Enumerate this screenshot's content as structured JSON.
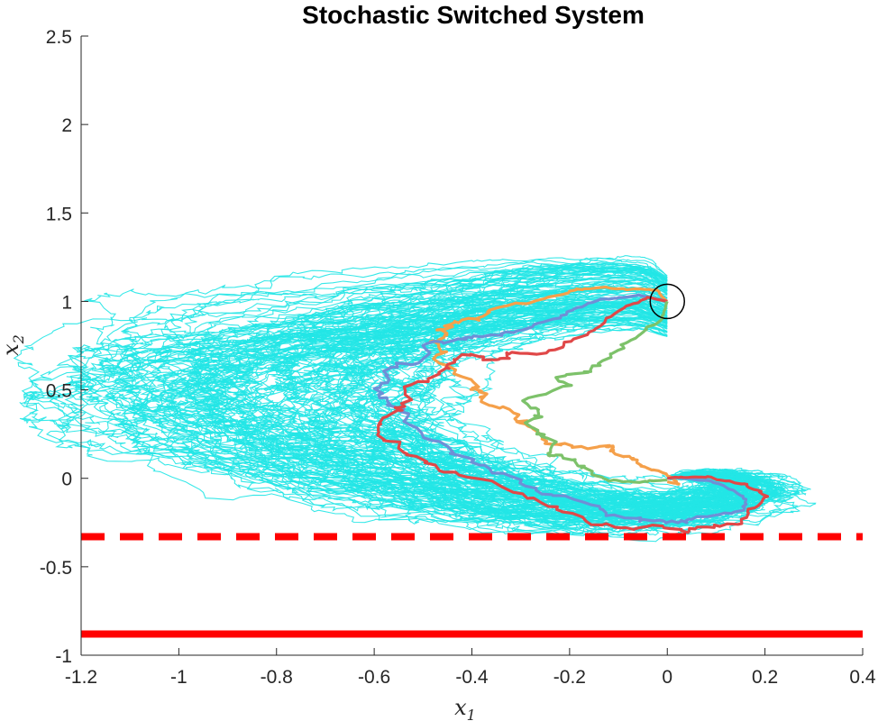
{
  "chart_data": {
    "type": "line",
    "title": "Stochastic Switched System",
    "xlabel": "x",
    "xlabel_sub": "1",
    "ylabel": "x",
    "ylabel_sub": "2",
    "xlim": [
      -1.2,
      0.4
    ],
    "ylim": [
      -1,
      2.5
    ],
    "xticks": [
      -1.2,
      -1,
      -0.8,
      -0.6,
      -0.4,
      -0.2,
      0,
      0.2,
      0.4
    ],
    "yticks": [
      -1,
      -0.5,
      0,
      0.5,
      1,
      1.5,
      2,
      2.5
    ],
    "xtick_labels": [
      "-1.2",
      "-1",
      "-0.8",
      "-0.6",
      "-0.4",
      "-0.2",
      "0",
      "0.2",
      "0.4"
    ],
    "ytick_labels": [
      "-1",
      "-0.5",
      "0",
      "0.5",
      "1",
      "1.5",
      "2",
      "2.5"
    ],
    "grid": false,
    "legend": "none",
    "initial_state": {
      "x": 0,
      "y": 1,
      "marker": "circle",
      "color": "#000000"
    },
    "constraints": [
      {
        "y": -0.33,
        "style": "dashed",
        "color": "#ff0000",
        "x_from": -1.2,
        "x_to": 0.4
      },
      {
        "y": -0.88,
        "style": "solid",
        "color": "#ff0000",
        "x_from": -1.2,
        "x_to": 0.4
      }
    ],
    "sample_paths": {
      "color": "#22e6e6",
      "count": 120,
      "anchor": [
        [
          0.0,
          1.0
        ],
        [
          -0.05,
          1.07
        ],
        [
          -0.15,
          1.07
        ],
        [
          -0.3,
          1.04
        ],
        [
          -0.45,
          0.98
        ],
        [
          -0.6,
          0.9
        ],
        [
          -0.75,
          0.82
        ],
        [
          -0.86,
          0.72
        ],
        [
          -0.9,
          0.6
        ],
        [
          -0.88,
          0.45
        ],
        [
          -0.82,
          0.3
        ],
        [
          -0.7,
          0.15
        ],
        [
          -0.55,
          0.02
        ],
        [
          -0.4,
          -0.08
        ],
        [
          -0.22,
          -0.15
        ],
        [
          -0.05,
          -0.18
        ],
        [
          0.1,
          -0.15
        ],
        [
          0.18,
          -0.08
        ],
        [
          0.15,
          0.0
        ],
        [
          0.05,
          0.02
        ],
        [
          0.0,
          0.0
        ]
      ]
    },
    "series": [
      {
        "color": "#f5a04a",
        "points": [
          [
            0.0,
            1.0
          ],
          [
            -0.03,
            1.06
          ],
          [
            -0.1,
            1.06
          ],
          [
            -0.2,
            1.08
          ],
          [
            -0.28,
            1.05
          ],
          [
            -0.36,
            0.98
          ],
          [
            -0.42,
            0.92
          ],
          [
            -0.47,
            0.86
          ],
          [
            -0.5,
            0.8
          ],
          [
            -0.49,
            0.68
          ],
          [
            -0.44,
            0.58
          ],
          [
            -0.4,
            0.5
          ],
          [
            -0.34,
            0.4
          ],
          [
            -0.26,
            0.3
          ],
          [
            -0.18,
            0.22
          ],
          [
            -0.1,
            0.18
          ],
          [
            -0.05,
            0.12
          ],
          [
            -0.02,
            0.05
          ],
          [
            0.02,
            0.0
          ],
          [
            0.03,
            -0.03
          ],
          [
            0.0,
            -0.02
          ]
        ]
      },
      {
        "color": "#6f8fd6",
        "points": [
          [
            0.0,
            1.0
          ],
          [
            -0.06,
            1.04
          ],
          [
            -0.14,
            1.02
          ],
          [
            -0.22,
            0.94
          ],
          [
            -0.3,
            0.88
          ],
          [
            -0.38,
            0.84
          ],
          [
            -0.46,
            0.8
          ],
          [
            -0.52,
            0.7
          ],
          [
            -0.55,
            0.55
          ],
          [
            -0.53,
            0.4
          ],
          [
            -0.46,
            0.25
          ],
          [
            -0.38,
            0.1
          ],
          [
            -0.3,
            -0.02
          ],
          [
            -0.2,
            -0.12
          ],
          [
            -0.08,
            -0.2
          ],
          [
            0.04,
            -0.22
          ],
          [
            0.14,
            -0.18
          ],
          [
            0.16,
            -0.08
          ],
          [
            0.1,
            -0.02
          ],
          [
            0.02,
            0.0
          ],
          [
            0.0,
            0.0
          ]
        ]
      },
      {
        "color": "#e04848",
        "points": [
          [
            0.0,
            1.0
          ],
          [
            -0.04,
            1.02
          ],
          [
            -0.09,
            0.95
          ],
          [
            -0.14,
            0.82
          ],
          [
            -0.22,
            0.72
          ],
          [
            -0.32,
            0.68
          ],
          [
            -0.4,
            0.72
          ],
          [
            -0.46,
            0.66
          ],
          [
            -0.52,
            0.52
          ],
          [
            -0.53,
            0.38
          ],
          [
            -0.49,
            0.18
          ],
          [
            -0.42,
            0.0
          ],
          [
            -0.32,
            -0.14
          ],
          [
            -0.2,
            -0.26
          ],
          [
            -0.06,
            -0.33
          ],
          [
            0.06,
            -0.36
          ],
          [
            0.16,
            -0.3
          ],
          [
            0.22,
            -0.14
          ],
          [
            0.18,
            -0.02
          ],
          [
            0.1,
            0.02
          ],
          [
            0.03,
            0.01
          ],
          [
            0.0,
            0.0
          ]
        ]
      },
      {
        "color": "#7dc26a",
        "points": [
          [
            0.0,
            1.0
          ],
          [
            -0.02,
            0.9
          ],
          [
            -0.06,
            0.8
          ],
          [
            -0.11,
            0.68
          ],
          [
            -0.16,
            0.58
          ],
          [
            -0.22,
            0.48
          ],
          [
            -0.27,
            0.38
          ],
          [
            -0.28,
            0.28
          ],
          [
            -0.24,
            0.18
          ],
          [
            -0.18,
            0.1
          ],
          [
            -0.12,
            0.05
          ],
          [
            -0.06,
            0.02
          ],
          [
            -0.02,
            0.0
          ],
          [
            0.0,
            -0.01
          ]
        ]
      }
    ]
  }
}
